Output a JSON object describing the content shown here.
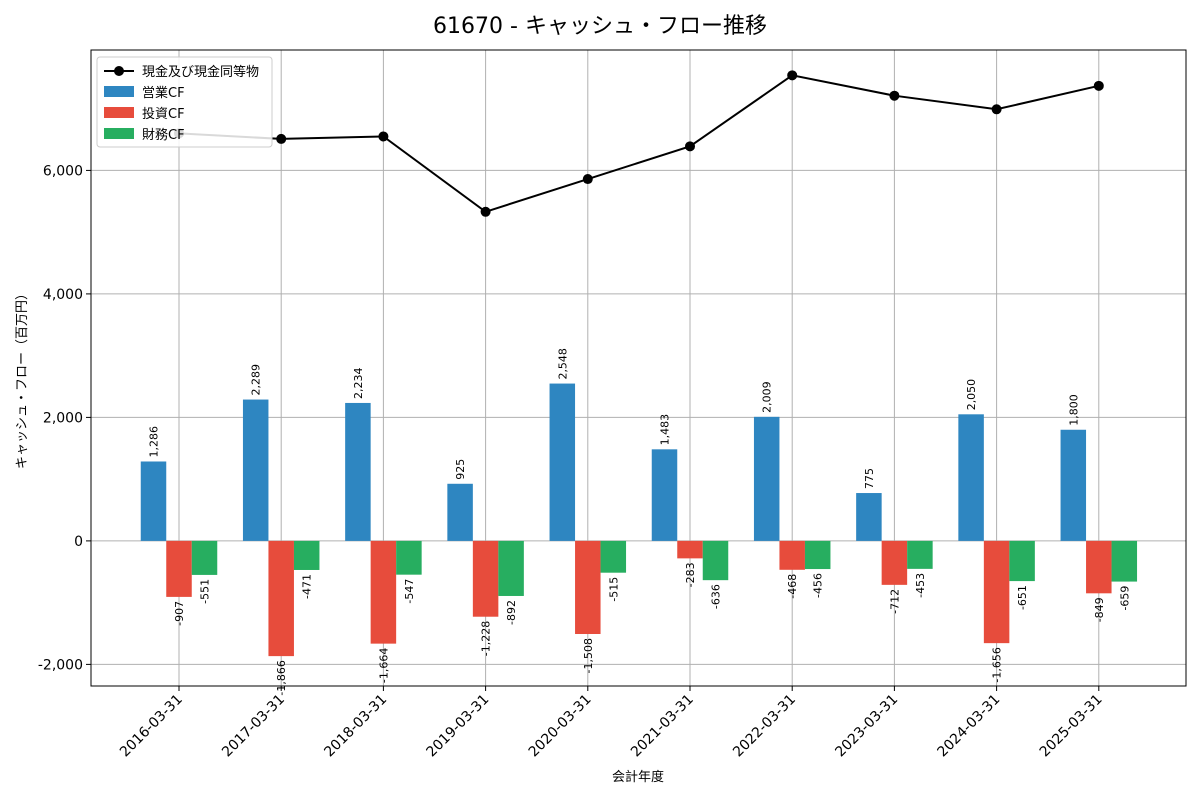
{
  "chart_data": {
    "type": "bar",
    "title": "61670 - キャッシュ・フロー推移",
    "xlabel": "会計年度",
    "ylabel": "キャッシュ・フロー（百万円）",
    "ylim": [
      -2350,
      7950
    ],
    "yticks": [
      -2000,
      0,
      2000,
      4000,
      6000
    ],
    "ytick_labels": [
      "-2,000",
      "0",
      "2,000",
      "4,000",
      "6,000"
    ],
    "grid": true,
    "legend_position": "top-left",
    "categories": [
      "2016-03-31",
      "2017-03-31",
      "2018-03-31",
      "2019-03-31",
      "2020-03-31",
      "2021-03-31",
      "2022-03-31",
      "2023-03-31",
      "2024-03-31",
      "2025-03-31"
    ],
    "line_series": {
      "name": "現金及び現金同等物",
      "color": "#000000",
      "values": [
        6600,
        6510,
        6550,
        5330,
        5860,
        6390,
        7540,
        7210,
        6990,
        7370
      ]
    },
    "series": [
      {
        "name": "営業CF",
        "color": "#2e86c1",
        "values": [
          1286,
          2289,
          2234,
          925,
          2548,
          1483,
          2009,
          775,
          2050,
          1800
        ],
        "labels": [
          "1,286",
          "2,289",
          "2,234",
          "925",
          "2,548",
          "1,483",
          "2,009",
          "775",
          "2,050",
          "1,800"
        ]
      },
      {
        "name": "投資CF",
        "color": "#e74c3c",
        "values": [
          -907,
          -1866,
          -1664,
          -1228,
          -1508,
          -283,
          -468,
          -712,
          -1656,
          -849
        ],
        "labels": [
          "-907",
          "-1,866",
          "-1,664",
          "-1,228",
          "-1,508",
          "-283",
          "-468",
          "-712",
          "-1,656",
          "-849"
        ]
      },
      {
        "name": "財務CF",
        "color": "#27ae60",
        "values": [
          -551,
          -471,
          -547,
          -892,
          -515,
          -636,
          -456,
          -453,
          -651,
          -659
        ],
        "labels": [
          "-551",
          "-471",
          "-547",
          "-892",
          "-515",
          "-636",
          "-456",
          "-453",
          "-651",
          "-659"
        ]
      }
    ]
  }
}
